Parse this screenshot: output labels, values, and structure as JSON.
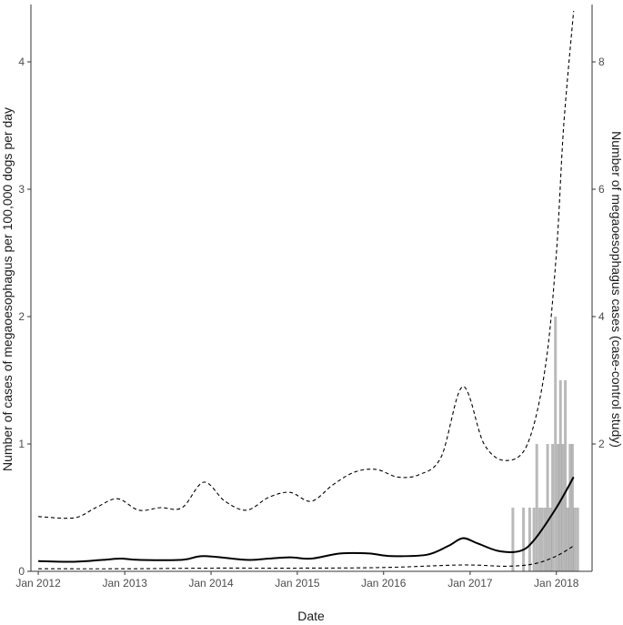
{
  "chart_data": {
    "type": "line",
    "title": "",
    "xlabel": "Date",
    "ylabel": "Number of cases of megaoesophagus per 100,000 dogs per day",
    "y2label": "Number of megaoesophagus cases (case-control study)",
    "grid": false,
    "x_range": [
      "2011-12-01",
      "2018-06-01"
    ],
    "ylim": [
      0,
      4.45
    ],
    "y2lim": [
      0,
      8.9
    ],
    "x_ticks": [
      {
        "date": "2012-01-01",
        "label": "Jan 2012"
      },
      {
        "date": "2013-01-01",
        "label": "Jan 2013"
      },
      {
        "date": "2014-01-01",
        "label": "Jan 2014"
      },
      {
        "date": "2015-01-01",
        "label": "Jan 2015"
      },
      {
        "date": "2016-01-01",
        "label": "Jan 2016"
      },
      {
        "date": "2017-01-01",
        "label": "Jan 2017"
      },
      {
        "date": "2018-01-01",
        "label": "Jan 2018"
      }
    ],
    "y_ticks": [
      0,
      1,
      2,
      3,
      4
    ],
    "y2_ticks": [
      2,
      4,
      6,
      8
    ],
    "series": [
      {
        "style": "solid",
        "color": "#000000",
        "points": [
          [
            "2012-01-01",
            0.08
          ],
          [
            "2012-06-01",
            0.075
          ],
          [
            "2012-10-01",
            0.09
          ],
          [
            "2012-12-15",
            0.1
          ],
          [
            "2013-03-01",
            0.09
          ],
          [
            "2013-09-01",
            0.09
          ],
          [
            "2013-12-01",
            0.12
          ],
          [
            "2014-06-01",
            0.09
          ],
          [
            "2014-09-01",
            0.1
          ],
          [
            "2014-12-01",
            0.11
          ],
          [
            "2015-03-01",
            0.1
          ],
          [
            "2015-07-01",
            0.14
          ],
          [
            "2015-11-01",
            0.14
          ],
          [
            "2016-02-01",
            0.12
          ],
          [
            "2016-07-01",
            0.13
          ],
          [
            "2016-10-01",
            0.2
          ],
          [
            "2016-12-01",
            0.26
          ],
          [
            "2017-02-01",
            0.22
          ],
          [
            "2017-05-01",
            0.16
          ],
          [
            "2017-08-01",
            0.16
          ],
          [
            "2017-10-01",
            0.25
          ],
          [
            "2018-01-01",
            0.5
          ],
          [
            "2018-03-15",
            0.74
          ]
        ]
      },
      {
        "style": "dashed",
        "color": "#000000",
        "points": [
          [
            "2012-01-01",
            0.43
          ],
          [
            "2012-06-01",
            0.42
          ],
          [
            "2012-09-01",
            0.5
          ],
          [
            "2012-12-01",
            0.57
          ],
          [
            "2013-03-01",
            0.48
          ],
          [
            "2013-06-01",
            0.5
          ],
          [
            "2013-09-01",
            0.5
          ],
          [
            "2013-12-01",
            0.7
          ],
          [
            "2014-03-01",
            0.55
          ],
          [
            "2014-06-01",
            0.48
          ],
          [
            "2014-09-01",
            0.58
          ],
          [
            "2014-12-01",
            0.62
          ],
          [
            "2015-03-01",
            0.55
          ],
          [
            "2015-06-01",
            0.68
          ],
          [
            "2015-09-01",
            0.78
          ],
          [
            "2015-12-01",
            0.8
          ],
          [
            "2016-03-01",
            0.74
          ],
          [
            "2016-06-01",
            0.76
          ],
          [
            "2016-09-01",
            0.9
          ],
          [
            "2016-12-01",
            1.45
          ],
          [
            "2017-03-01",
            1.0
          ],
          [
            "2017-06-01",
            0.87
          ],
          [
            "2017-09-01",
            1.0
          ],
          [
            "2017-11-15",
            1.6
          ],
          [
            "2018-01-01",
            2.5
          ],
          [
            "2018-02-01",
            3.5
          ],
          [
            "2018-03-15",
            4.4
          ]
        ]
      },
      {
        "style": "dashed",
        "color": "#000000",
        "points": [
          [
            "2012-01-01",
            0.02
          ],
          [
            "2013-01-01",
            0.02
          ],
          [
            "2014-01-01",
            0.025
          ],
          [
            "2015-01-01",
            0.025
          ],
          [
            "2016-01-01",
            0.03
          ],
          [
            "2016-12-01",
            0.05
          ],
          [
            "2017-06-01",
            0.04
          ],
          [
            "2017-10-01",
            0.06
          ],
          [
            "2018-01-01",
            0.12
          ],
          [
            "2018-03-15",
            0.2
          ]
        ]
      }
    ],
    "bars": {
      "axis": "secondary",
      "color": "#808080",
      "opacity": 0.55,
      "values": [
        [
          "2017-07-01",
          1
        ],
        [
          "2017-08-15",
          1
        ],
        [
          "2017-09-10",
          1
        ],
        [
          "2017-09-28",
          1
        ],
        [
          "2017-10-10",
          2
        ],
        [
          "2017-10-22",
          1
        ],
        [
          "2017-11-02",
          1
        ],
        [
          "2017-11-14",
          1
        ],
        [
          "2017-11-25",
          2
        ],
        [
          "2017-12-06",
          1
        ],
        [
          "2017-12-16",
          2
        ],
        [
          "2017-12-28",
          4
        ],
        [
          "2018-01-08",
          2
        ],
        [
          "2018-01-18",
          3
        ],
        [
          "2018-01-28",
          2
        ],
        [
          "2018-02-08",
          3
        ],
        [
          "2018-02-18",
          1
        ],
        [
          "2018-02-28",
          2
        ],
        [
          "2018-03-10",
          2
        ],
        [
          "2018-03-20",
          1
        ],
        [
          "2018-04-01",
          1
        ]
      ]
    }
  }
}
